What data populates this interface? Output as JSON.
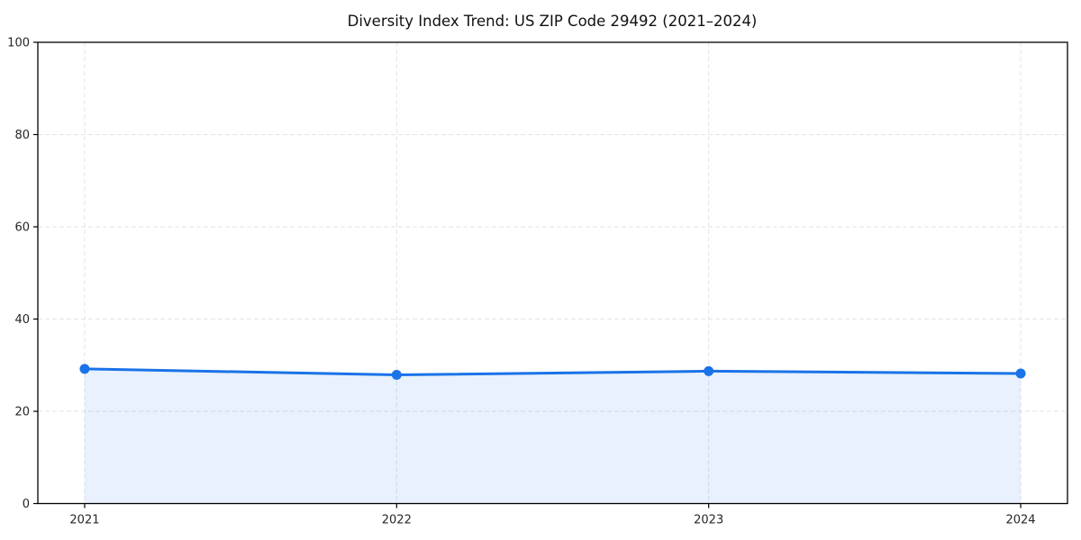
{
  "chart_data": {
    "type": "area",
    "title": "Diversity Index Trend: US ZIP Code 29492 (2021–2024)",
    "x": [
      2021,
      2022,
      2023,
      2024
    ],
    "x_tick_labels": [
      "2021",
      "2022",
      "2023",
      "2024"
    ],
    "series": [
      {
        "name": "Diversity Index",
        "values": [
          29.2,
          27.9,
          28.7,
          28.2
        ]
      }
    ],
    "xlabel": "",
    "ylabel": "",
    "ylim": [
      0,
      100
    ],
    "yticks": [
      0,
      20,
      40,
      60,
      80,
      100
    ],
    "grid": "dashed-both-axes",
    "legend_position": "none",
    "colors": {
      "line": "#1a73e8",
      "marker": "#1a73e8",
      "fill": "#1a73e8",
      "fill_opacity": "0.1",
      "grid": "#e3e3e3",
      "spine": "#000000",
      "tick_label": "#262626",
      "title": "#111111",
      "background": "#ffffff"
    }
  }
}
